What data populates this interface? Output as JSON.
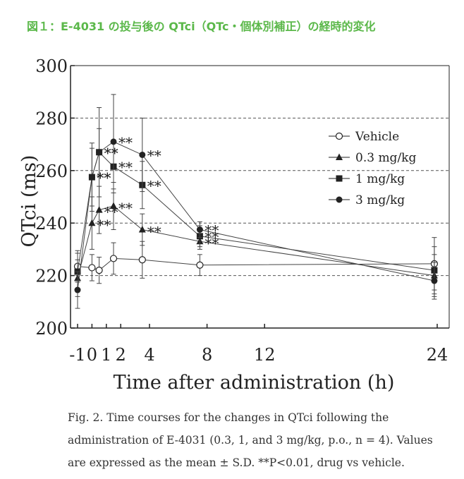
{
  "header": {
    "title_jp": "図１：E-4031 の投与後の QTci（QTc・個体別補正）の経時的変化"
  },
  "caption": {
    "line1": "Fig. 2. Time courses for the changes in QTci following the",
    "line2": "administration of E-4031 (0.3, 1, and 3 mg/kg, p.o., n = 4). Values",
    "line3": "are expressed as the mean ± S.D. **P<0.01, drug vs vehicle."
  },
  "colors": {
    "accent": "#5bb84a",
    "ink": "#222222",
    "grid": "#555555"
  },
  "chart_data": {
    "type": "line",
    "title": "",
    "xlabel": "Time after administration (h)",
    "ylabel": "QTci (ms)",
    "xlim": [
      -1,
      24
    ],
    "ylim": [
      200,
      300
    ],
    "xticks": [
      -1,
      0,
      1,
      2,
      4,
      8,
      12,
      24
    ],
    "xtick_labels": [
      "-1",
      "0",
      "1",
      "2",
      "4",
      "8",
      "12",
      "24"
    ],
    "yticks": [
      200,
      220,
      240,
      260,
      280,
      300
    ],
    "ytick_labels": [
      "200",
      "220",
      "240",
      "260",
      "280",
      "300"
    ],
    "dashed_gridlines_y": [
      220,
      240,
      260,
      280
    ],
    "significance_marker": "**",
    "legend_position": "right",
    "series": [
      {
        "name": "Vehicle",
        "marker": "open-circle",
        "x": [
          -1,
          0,
          0.5,
          1.5,
          3.5,
          7.5,
          23.8
        ],
        "values": [
          223.5,
          223,
          222,
          226.5,
          226,
          224,
          224.5
        ],
        "sd": [
          6,
          5,
          5,
          6,
          7,
          4,
          10
        ],
        "sig": [
          false,
          false,
          false,
          false,
          false,
          false,
          false
        ]
      },
      {
        "name": "0.3 mg/kg",
        "marker": "filled-triangle",
        "x": [
          -1,
          0,
          0.5,
          1.5,
          3.5,
          7.5,
          23.8
        ],
        "values": [
          219,
          240,
          245,
          246.5,
          237.5,
          233,
          220
        ],
        "sd": [
          7,
          10,
          9,
          9,
          6,
          3,
          8
        ],
        "sig": [
          false,
          true,
          true,
          true,
          true,
          true,
          false
        ]
      },
      {
        "name": "1 mg/kg",
        "marker": "filled-square",
        "x": [
          -1,
          0,
          0.5,
          1.5,
          3.5,
          7.5,
          23.8
        ],
        "values": [
          221.5,
          257.5,
          267,
          261.5,
          254.5,
          235,
          222
        ],
        "sd": [
          7,
          13,
          9,
          10,
          9,
          4,
          9
        ],
        "sig": [
          false,
          true,
          true,
          true,
          true,
          true,
          false
        ]
      },
      {
        "name": "3 mg/kg",
        "marker": "filled-circle",
        "x": [
          -1,
          0,
          0.5,
          1.5,
          3.5,
          7.5,
          23.8
        ],
        "values": [
          214.5,
          257.5,
          267,
          271,
          266,
          237.5,
          218
        ],
        "sd": [
          7,
          11,
          17,
          18,
          14,
          3,
          7
        ],
        "sig": [
          false,
          true,
          true,
          true,
          true,
          true,
          false
        ]
      }
    ]
  }
}
